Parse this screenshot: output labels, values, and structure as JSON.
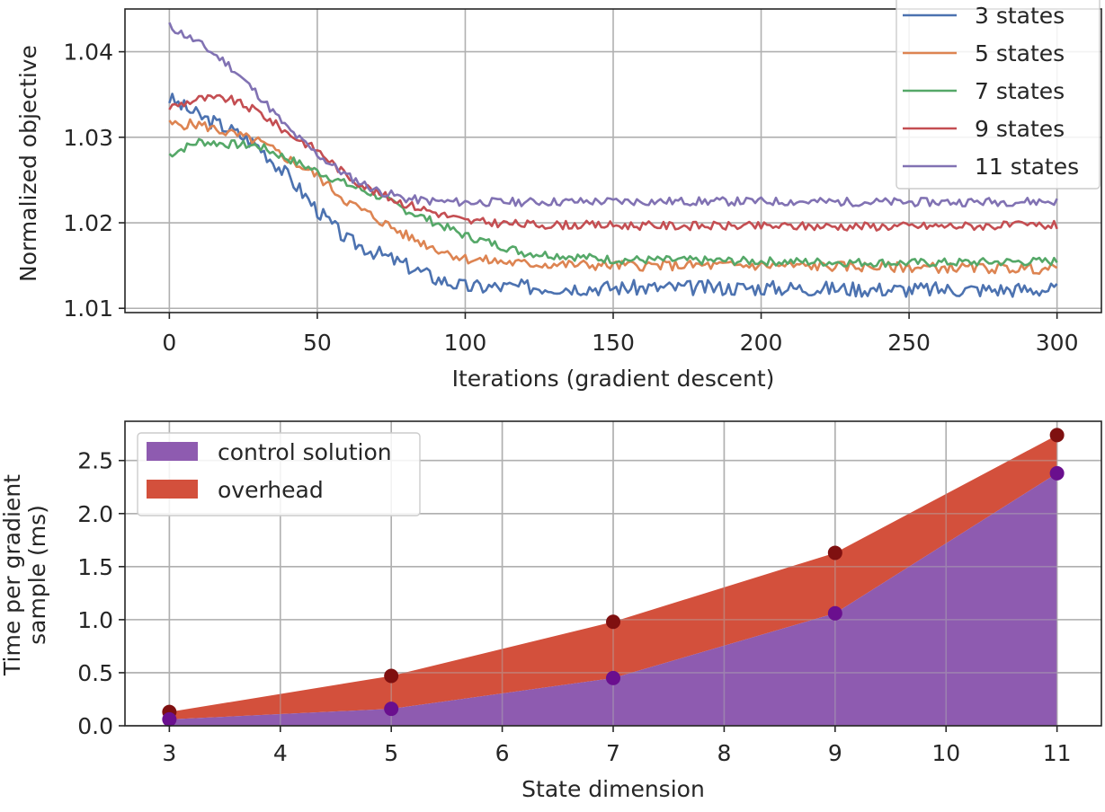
{
  "chart_data": [
    {
      "type": "line",
      "xlabel": "Iterations (gradient descent)",
      "ylabel": "Normalized objective",
      "xlim": [
        -15,
        315
      ],
      "ylim": [
        1.0095,
        1.045
      ],
      "xticks": [
        0,
        50,
        100,
        150,
        200,
        250,
        300
      ],
      "yticks": [
        1.01,
        1.02,
        1.03,
        1.04
      ],
      "ytick_labels": [
        "1.01",
        "1.02",
        "1.03",
        "1.04"
      ],
      "grid": true,
      "legend_position": "top-right",
      "series": [
        {
          "name": "3 states",
          "color": "#4c72b0",
          "anchors": [
            [
              0,
              1.0345
            ],
            [
              10,
              1.0325
            ],
            [
              20,
              1.031
            ],
            [
              30,
              1.029
            ],
            [
              40,
              1.0255
            ],
            [
              50,
              1.0215
            ],
            [
              60,
              1.018
            ],
            [
              70,
              1.0165
            ],
            [
              80,
              1.015
            ],
            [
              90,
              1.0135
            ],
            [
              100,
              1.0125
            ],
            [
              120,
              1.0125
            ],
            [
              150,
              1.0124
            ],
            [
              200,
              1.0124
            ],
            [
              250,
              1.0122
            ],
            [
              300,
              1.0122
            ]
          ],
          "noise": 0.0009,
          "seed": 3
        },
        {
          "name": "5 states",
          "color": "#dd8452",
          "anchors": [
            [
              0,
              1.0315
            ],
            [
              10,
              1.0315
            ],
            [
              20,
              1.0305
            ],
            [
              30,
              1.0295
            ],
            [
              40,
              1.0275
            ],
            [
              50,
              1.0255
            ],
            [
              60,
              1.0225
            ],
            [
              70,
              1.0205
            ],
            [
              80,
              1.0185
            ],
            [
              90,
              1.017
            ],
            [
              100,
              1.0158
            ],
            [
              120,
              1.0152
            ],
            [
              150,
              1.015
            ],
            [
              200,
              1.015
            ],
            [
              250,
              1.0148
            ],
            [
              300,
              1.0146
            ]
          ],
          "noise": 0.0006,
          "seed": 5
        },
        {
          "name": "7 states",
          "color": "#55a868",
          "anchors": [
            [
              0,
              1.028
            ],
            [
              10,
              1.0295
            ],
            [
              20,
              1.0292
            ],
            [
              30,
              1.029
            ],
            [
              40,
              1.0275
            ],
            [
              50,
              1.026
            ],
            [
              60,
              1.0245
            ],
            [
              70,
              1.0232
            ],
            [
              80,
              1.0215
            ],
            [
              90,
              1.02
            ],
            [
              100,
              1.0185
            ],
            [
              120,
              1.0165
            ],
            [
              150,
              1.0157
            ],
            [
              200,
              1.0155
            ],
            [
              250,
              1.0153
            ],
            [
              300,
              1.0155
            ]
          ],
          "noise": 0.0005,
          "seed": 7
        },
        {
          "name": "9 states",
          "color": "#c44e52",
          "anchors": [
            [
              0,
              1.0335
            ],
            [
              10,
              1.0345
            ],
            [
              20,
              1.0345
            ],
            [
              30,
              1.033
            ],
            [
              40,
              1.0305
            ],
            [
              50,
              1.0285
            ],
            [
              60,
              1.0255
            ],
            [
              70,
              1.0235
            ],
            [
              80,
              1.0222
            ],
            [
              90,
              1.0212
            ],
            [
              100,
              1.0202
            ],
            [
              120,
              1.0198
            ],
            [
              150,
              1.0197
            ],
            [
              200,
              1.0196
            ],
            [
              250,
              1.0196
            ],
            [
              300,
              1.0197
            ]
          ],
          "noise": 0.0005,
          "seed": 9
        },
        {
          "name": "11 states",
          "color": "#8172b3",
          "anchors": [
            [
              0,
              1.043
            ],
            [
              10,
              1.041
            ],
            [
              20,
              1.0385
            ],
            [
              30,
              1.035
            ],
            [
              40,
              1.031
            ],
            [
              50,
              1.028
            ],
            [
              60,
              1.0255
            ],
            [
              70,
              1.0238
            ],
            [
              80,
              1.0228
            ],
            [
              90,
              1.0225
            ],
            [
              100,
              1.0224
            ],
            [
              150,
              1.0225
            ],
            [
              200,
              1.0225
            ],
            [
              250,
              1.0224
            ],
            [
              300,
              1.0225
            ]
          ],
          "noise": 0.0005,
          "seed": 11
        }
      ]
    },
    {
      "type": "area",
      "stacked": true,
      "xlabel": "State dimension",
      "ylabel_lines": [
        "Time per gradient",
        "sample (ms)"
      ],
      "xlim": [
        2.6,
        11.4
      ],
      "ylim": [
        0.0,
        2.87
      ],
      "xticks": [
        3,
        4,
        5,
        6,
        7,
        8,
        9,
        10,
        11
      ],
      "yticks": [
        0.0,
        0.5,
        1.0,
        1.5,
        2.0,
        2.5
      ],
      "ytick_labels": [
        "0.0",
        "0.5",
        "1.0",
        "1.5",
        "2.0",
        "2.5"
      ],
      "grid": true,
      "legend_position": "top-left",
      "x": [
        3,
        5,
        7,
        9,
        11
      ],
      "series": [
        {
          "name": "control solution",
          "color": "#8e5bb0",
          "marker_color": "#6a0f8e",
          "values": [
            0.06,
            0.16,
            0.45,
            1.06,
            2.38
          ]
        },
        {
          "name": "overhead",
          "color": "#d3503c",
          "marker_color": "#7f1010",
          "values": [
            0.07,
            0.31,
            0.53,
            0.57,
            0.36
          ]
        }
      ],
      "totals": [
        0.13,
        0.47,
        0.98,
        1.63,
        2.74
      ]
    }
  ]
}
